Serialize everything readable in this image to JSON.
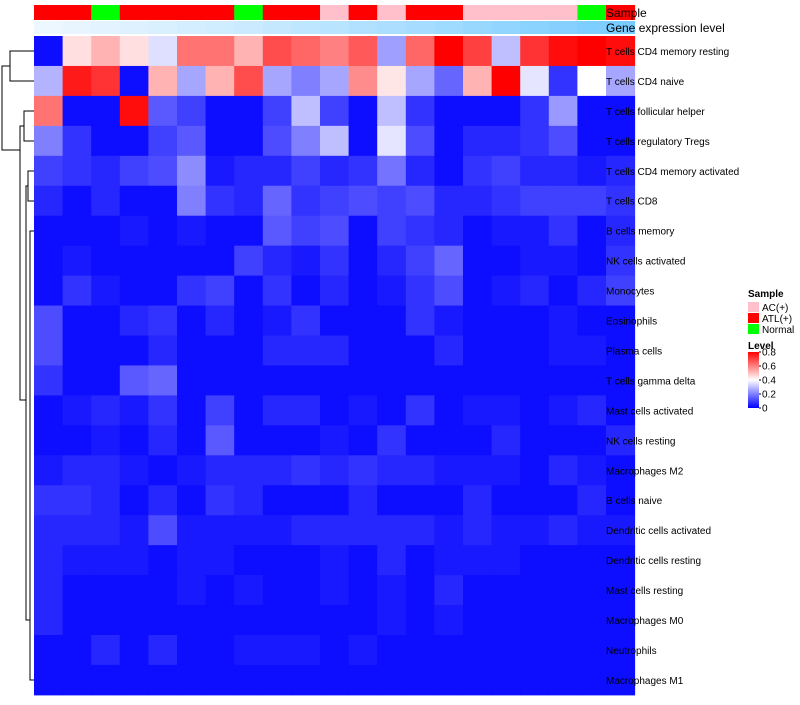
{
  "chart_data": {
    "type": "heatmap",
    "annotation_tracks": [
      "Sample",
      "Gene expression level"
    ],
    "sample_legend": {
      "title": "Sample",
      "entries": [
        {
          "label": "AC(+)",
          "color": "#ffc0cb"
        },
        {
          "label": "ATL(+)",
          "color": "#ff0000"
        },
        {
          "label": "Normal",
          "color": "#00ff00"
        }
      ]
    },
    "level_legend": {
      "title": "Level",
      "ticks": [
        "0.8",
        "0.6",
        "0.4",
        "0.2",
        "0"
      ],
      "tick_values": [
        0.8,
        0.6,
        0.4,
        0.2,
        0
      ],
      "colors": [
        "#0000ff",
        "#ffffff",
        "#ff0000"
      ],
      "range": [
        0,
        0.8
      ]
    },
    "sample_groups": [
      "ATL(+)",
      "ATL(+)",
      "Normal",
      "ATL(+)",
      "ATL(+)",
      "ATL(+)",
      "ATL(+)",
      "Normal",
      "ATL(+)",
      "ATL(+)",
      "AC(+)",
      "ATL(+)",
      "AC(+)",
      "ATL(+)",
      "ATL(+)",
      "AC(+)",
      "AC(+)",
      "AC(+)",
      "AC(+)",
      "Normal",
      "ATL(+)"
    ],
    "gene_expression_level": [
      0.02,
      0.05,
      0.08,
      0.11,
      0.14,
      0.17,
      0.2,
      0.23,
      0.26,
      0.3,
      0.34,
      0.38,
      0.42,
      0.46,
      0.5,
      0.54,
      0.58,
      0.62,
      0.66,
      0.7,
      0.74
    ],
    "rows": [
      "T cells CD4 memory resting",
      "T cells CD4 naive",
      "T cells follicular helper",
      "T cells regulatory  Tregs",
      "T cells CD4 memory activated",
      "T cells CD8",
      "B cells memory",
      "NK cells activated",
      "Monocytes",
      "Eosinophils",
      "Plasma cells",
      "T cells gamma delta",
      "Mast cells activated",
      "NK cells resting",
      "Macrophages M2",
      "B cells naive",
      "Dendritic cells activated",
      "Dendritic cells resting",
      "Mast cells resting",
      "Macrophages M0",
      "Neutrophils",
      "Macrophages M1"
    ],
    "values": [
      [
        0.02,
        0.45,
        0.52,
        0.45,
        0.35,
        0.62,
        0.62,
        0.52,
        0.68,
        0.64,
        0.6,
        0.66,
        0.25,
        0.64,
        0.8,
        0.7,
        0.3,
        0.72,
        0.78,
        0.8,
        0.78
      ],
      [
        0.28,
        0.76,
        0.72,
        0.02,
        0.52,
        0.26,
        0.52,
        0.68,
        0.26,
        0.2,
        0.26,
        0.58,
        0.44,
        0.26,
        0.16,
        0.52,
        0.8,
        0.36,
        0.08,
        0.4,
        0.26
      ],
      [
        0.62,
        0.02,
        0.02,
        0.78,
        0.14,
        0.1,
        0.02,
        0.02,
        0.1,
        0.3,
        0.1,
        0.02,
        0.3,
        0.08,
        0.02,
        0.02,
        0.02,
        0.08,
        0.24,
        0.02,
        0.02
      ],
      [
        0.2,
        0.08,
        0.02,
        0.02,
        0.1,
        0.14,
        0.02,
        0.02,
        0.12,
        0.2,
        0.3,
        0.02,
        0.36,
        0.12,
        0.02,
        0.06,
        0.06,
        0.08,
        0.12,
        0.02,
        0.02
      ],
      [
        0.1,
        0.08,
        0.06,
        0.1,
        0.12,
        0.22,
        0.04,
        0.06,
        0.06,
        0.1,
        0.06,
        0.08,
        0.18,
        0.06,
        0.02,
        0.08,
        0.1,
        0.06,
        0.06,
        0.04,
        0.06
      ],
      [
        0.06,
        0.02,
        0.06,
        0.02,
        0.02,
        0.2,
        0.08,
        0.06,
        0.16,
        0.08,
        0.1,
        0.12,
        0.1,
        0.12,
        0.06,
        0.06,
        0.08,
        0.1,
        0.1,
        0.1,
        0.08
      ],
      [
        0.02,
        0.02,
        0.02,
        0.04,
        0.02,
        0.04,
        0.02,
        0.02,
        0.14,
        0.1,
        0.12,
        0.02,
        0.1,
        0.08,
        0.06,
        0.02,
        0.04,
        0.04,
        0.08,
        0.02,
        0.06
      ],
      [
        0.02,
        0.04,
        0.02,
        0.02,
        0.02,
        0.02,
        0.02,
        0.1,
        0.06,
        0.04,
        0.08,
        0.02,
        0.06,
        0.1,
        0.16,
        0.02,
        0.02,
        0.04,
        0.04,
        0.02,
        0.08
      ],
      [
        0.02,
        0.08,
        0.04,
        0.02,
        0.02,
        0.08,
        0.1,
        0.02,
        0.08,
        0.02,
        0.06,
        0.02,
        0.04,
        0.08,
        0.12,
        0.02,
        0.04,
        0.06,
        0.02,
        0.06,
        0.1
      ],
      [
        0.12,
        0.02,
        0.02,
        0.06,
        0.08,
        0.02,
        0.06,
        0.02,
        0.04,
        0.08,
        0.02,
        0.02,
        0.02,
        0.08,
        0.04,
        0.02,
        0.02,
        0.02,
        0.04,
        0.02,
        0.02
      ],
      [
        0.12,
        0.02,
        0.02,
        0.02,
        0.06,
        0.02,
        0.02,
        0.02,
        0.06,
        0.06,
        0.06,
        0.02,
        0.02,
        0.02,
        0.06,
        0.02,
        0.02,
        0.02,
        0.04,
        0.04,
        0.02
      ],
      [
        0.08,
        0.02,
        0.02,
        0.14,
        0.16,
        0.02,
        0.02,
        0.02,
        0.02,
        0.02,
        0.02,
        0.02,
        0.02,
        0.02,
        0.02,
        0.02,
        0.02,
        0.02,
        0.02,
        0.02,
        0.02
      ],
      [
        0.02,
        0.04,
        0.06,
        0.04,
        0.08,
        0.02,
        0.1,
        0.02,
        0.06,
        0.06,
        0.02,
        0.04,
        0.02,
        0.08,
        0.02,
        0.04,
        0.04,
        0.02,
        0.04,
        0.06,
        0.02
      ],
      [
        0.02,
        0.02,
        0.04,
        0.02,
        0.06,
        0.02,
        0.14,
        0.02,
        0.02,
        0.02,
        0.04,
        0.02,
        0.08,
        0.02,
        0.02,
        0.02,
        0.06,
        0.02,
        0.02,
        0.02,
        0.06
      ],
      [
        0.04,
        0.06,
        0.06,
        0.04,
        0.02,
        0.04,
        0.06,
        0.06,
        0.06,
        0.08,
        0.06,
        0.08,
        0.06,
        0.06,
        0.04,
        0.04,
        0.04,
        0.02,
        0.06,
        0.04,
        0.02
      ],
      [
        0.08,
        0.08,
        0.06,
        0.02,
        0.06,
        0.02,
        0.08,
        0.06,
        0.02,
        0.02,
        0.02,
        0.06,
        0.02,
        0.02,
        0.02,
        0.06,
        0.02,
        0.02,
        0.02,
        0.06,
        0.02
      ],
      [
        0.06,
        0.06,
        0.06,
        0.04,
        0.12,
        0.04,
        0.04,
        0.04,
        0.04,
        0.06,
        0.06,
        0.06,
        0.06,
        0.06,
        0.04,
        0.06,
        0.04,
        0.04,
        0.06,
        0.04,
        0.04
      ],
      [
        0.06,
        0.04,
        0.04,
        0.04,
        0.02,
        0.04,
        0.04,
        0.02,
        0.02,
        0.02,
        0.04,
        0.02,
        0.06,
        0.02,
        0.04,
        0.04,
        0.04,
        0.02,
        0.02,
        0.02,
        0.02
      ],
      [
        0.06,
        0.02,
        0.02,
        0.02,
        0.02,
        0.04,
        0.02,
        0.04,
        0.02,
        0.02,
        0.04,
        0.02,
        0.04,
        0.02,
        0.06,
        0.02,
        0.02,
        0.02,
        0.02,
        0.02,
        0.02
      ],
      [
        0.06,
        0.02,
        0.02,
        0.02,
        0.02,
        0.02,
        0.02,
        0.02,
        0.02,
        0.02,
        0.02,
        0.02,
        0.04,
        0.02,
        0.04,
        0.02,
        0.02,
        0.02,
        0.02,
        0.02,
        0.02
      ],
      [
        0.02,
        0.02,
        0.06,
        0.02,
        0.06,
        0.02,
        0.02,
        0.04,
        0.04,
        0.04,
        0.02,
        0.04,
        0.02,
        0.02,
        0.02,
        0.02,
        0.02,
        0.02,
        0.02,
        0.02,
        0.02
      ],
      [
        0.02,
        0.02,
        0.02,
        0.02,
        0.02,
        0.02,
        0.02,
        0.02,
        0.02,
        0.02,
        0.02,
        0.02,
        0.02,
        0.02,
        0.02,
        0.02,
        0.02,
        0.02,
        0.02,
        0.02,
        0.02
      ]
    ]
  }
}
